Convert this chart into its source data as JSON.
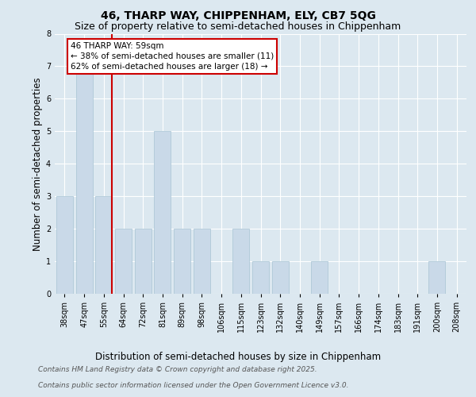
{
  "title_line1": "46, THARP WAY, CHIPPENHAM, ELY, CB7 5QG",
  "title_line2": "Size of property relative to semi-detached houses in Chippenham",
  "xlabel": "Distribution of semi-detached houses by size in Chippenham",
  "ylabel": "Number of semi-detached properties",
  "categories": [
    "38sqm",
    "47sqm",
    "55sqm",
    "64sqm",
    "72sqm",
    "81sqm",
    "89sqm",
    "98sqm",
    "106sqm",
    "115sqm",
    "123sqm",
    "132sqm",
    "140sqm",
    "149sqm",
    "157sqm",
    "166sqm",
    "174sqm",
    "183sqm",
    "191sqm",
    "200sqm",
    "208sqm"
  ],
  "values": [
    3,
    7,
    3,
    2,
    2,
    5,
    2,
    2,
    0,
    2,
    1,
    1,
    0,
    1,
    0,
    0,
    0,
    0,
    0,
    1,
    0
  ],
  "bar_color": "#c9d9e8",
  "bar_edge_color": "#a8c4d4",
  "subject_line_index": 2,
  "annotation_text": "46 THARP WAY: 59sqm\n← 38% of semi-detached houses are smaller (11)\n62% of semi-detached houses are larger (18) →",
  "vline_color": "#cc0000",
  "ylim": [
    0,
    8
  ],
  "yticks": [
    0,
    1,
    2,
    3,
    4,
    5,
    6,
    7,
    8
  ],
  "footer_line1": "Contains HM Land Registry data © Crown copyright and database right 2025.",
  "footer_line2": "Contains public sector information licensed under the Open Government Licence v3.0.",
  "bg_color": "#dce8f0",
  "title_fontsize": 10,
  "subtitle_fontsize": 9,
  "axis_label_fontsize": 8.5,
  "tick_fontsize": 7,
  "annot_fontsize": 7.5,
  "footer_fontsize": 6.5
}
